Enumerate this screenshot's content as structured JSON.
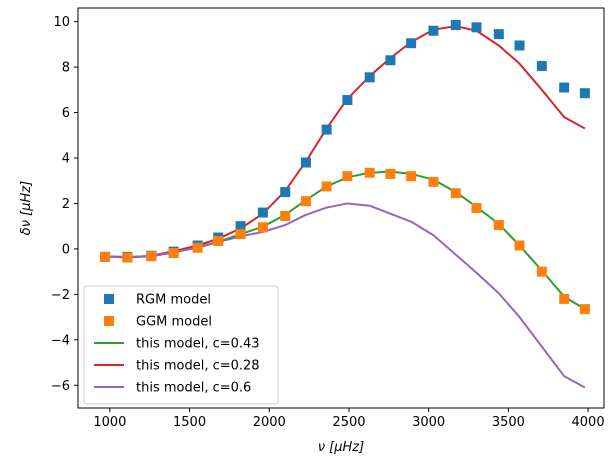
{
  "chart_data": {
    "type": "scatter",
    "title": "",
    "xlabel": "ν [μHz]",
    "ylabel": "δν [μHz]",
    "xlim": [
      800,
      4100
    ],
    "ylim": [
      -7,
      10.6
    ],
    "xticks": [
      1000,
      1500,
      2000,
      2500,
      3000,
      3500,
      4000
    ],
    "yticks": [
      -6,
      -4,
      -2,
      0,
      2,
      4,
      6,
      8,
      10
    ],
    "xtick_labels": [
      "1000",
      "1500",
      "2000",
      "2500",
      "3000",
      "3500",
      "4000"
    ],
    "ytick_labels": [
      "−6",
      "−4",
      "−2",
      "0",
      "2",
      "4",
      "6",
      "8",
      "10"
    ],
    "grid": false,
    "legend_position": "lower-left",
    "series": [
      {
        "name": "RGM model",
        "kind": "markers",
        "color": "#1f77b4",
        "x": [
          970,
          1110,
          1260,
          1400,
          1550,
          1680,
          1820,
          1960,
          2100,
          2230,
          2360,
          2490,
          2630,
          2760,
          2890,
          3030,
          3170,
          3300,
          3440,
          3570,
          3710,
          3850,
          3980
        ],
        "y": [
          -0.35,
          -0.35,
          -0.3,
          -0.12,
          0.15,
          0.5,
          1.0,
          1.6,
          2.5,
          3.8,
          5.25,
          6.55,
          7.55,
          8.3,
          9.05,
          9.6,
          9.85,
          9.75,
          9.45,
          8.95,
          8.05,
          7.1,
          6.85
        ]
      },
      {
        "name": "GGM model",
        "kind": "markers",
        "color": "#ff7f0e",
        "x": [
          970,
          1110,
          1260,
          1400,
          1550,
          1680,
          1820,
          1960,
          2100,
          2230,
          2360,
          2490,
          2630,
          2760,
          2890,
          3030,
          3170,
          3300,
          3440,
          3570,
          3710,
          3850,
          3980
        ],
        "y": [
          -0.35,
          -0.38,
          -0.32,
          -0.18,
          0.05,
          0.35,
          0.65,
          0.95,
          1.45,
          2.1,
          2.75,
          3.2,
          3.35,
          3.3,
          3.2,
          2.95,
          2.45,
          1.8,
          1.05,
          0.15,
          -1.0,
          -2.2,
          -2.65
        ]
      },
      {
        "name": "this model, c=0.43",
        "kind": "line",
        "color": "#2ca02c",
        "x": [
          970,
          1110,
          1260,
          1400,
          1550,
          1680,
          1820,
          1960,
          2100,
          2230,
          2360,
          2490,
          2630,
          2760,
          2890,
          3030,
          3170,
          3300,
          3440,
          3570,
          3710,
          3850,
          3980
        ],
        "y": [
          -0.33,
          -0.37,
          -0.33,
          -0.15,
          0.07,
          0.32,
          0.65,
          0.98,
          1.5,
          2.15,
          2.75,
          3.15,
          3.35,
          3.4,
          3.3,
          3.05,
          2.5,
          1.85,
          1.1,
          0.15,
          -0.95,
          -2.1,
          -2.65
        ]
      },
      {
        "name": "this model, c=0.28",
        "kind": "line",
        "color": "#d62728",
        "x": [
          970,
          1110,
          1260,
          1400,
          1550,
          1680,
          1820,
          1960,
          2100,
          2230,
          2360,
          2490,
          2630,
          2760,
          2890,
          3030,
          3170,
          3300,
          3440,
          3570,
          3710,
          3850,
          3980
        ],
        "y": [
          -0.33,
          -0.37,
          -0.3,
          -0.1,
          0.15,
          0.45,
          0.9,
          1.55,
          2.55,
          3.85,
          5.3,
          6.6,
          7.6,
          8.4,
          9.1,
          9.65,
          9.8,
          9.6,
          8.95,
          8.15,
          7.0,
          5.8,
          5.3
        ]
      },
      {
        "name": "this model, c=0.6",
        "kind": "line",
        "color": "#9467bd",
        "x": [
          970,
          1110,
          1260,
          1400,
          1550,
          1680,
          1820,
          1960,
          2100,
          2230,
          2360,
          2490,
          2630,
          2760,
          2890,
          3030,
          3170,
          3300,
          3440,
          3570,
          3710,
          3850,
          3980
        ],
        "y": [
          -0.33,
          -0.35,
          -0.32,
          -0.15,
          0.05,
          0.3,
          0.55,
          0.75,
          1.05,
          1.5,
          1.82,
          2.0,
          1.9,
          1.55,
          1.2,
          0.6,
          -0.25,
          -1.05,
          -1.95,
          -3.0,
          -4.3,
          -5.6,
          -6.1
        ]
      }
    ]
  }
}
